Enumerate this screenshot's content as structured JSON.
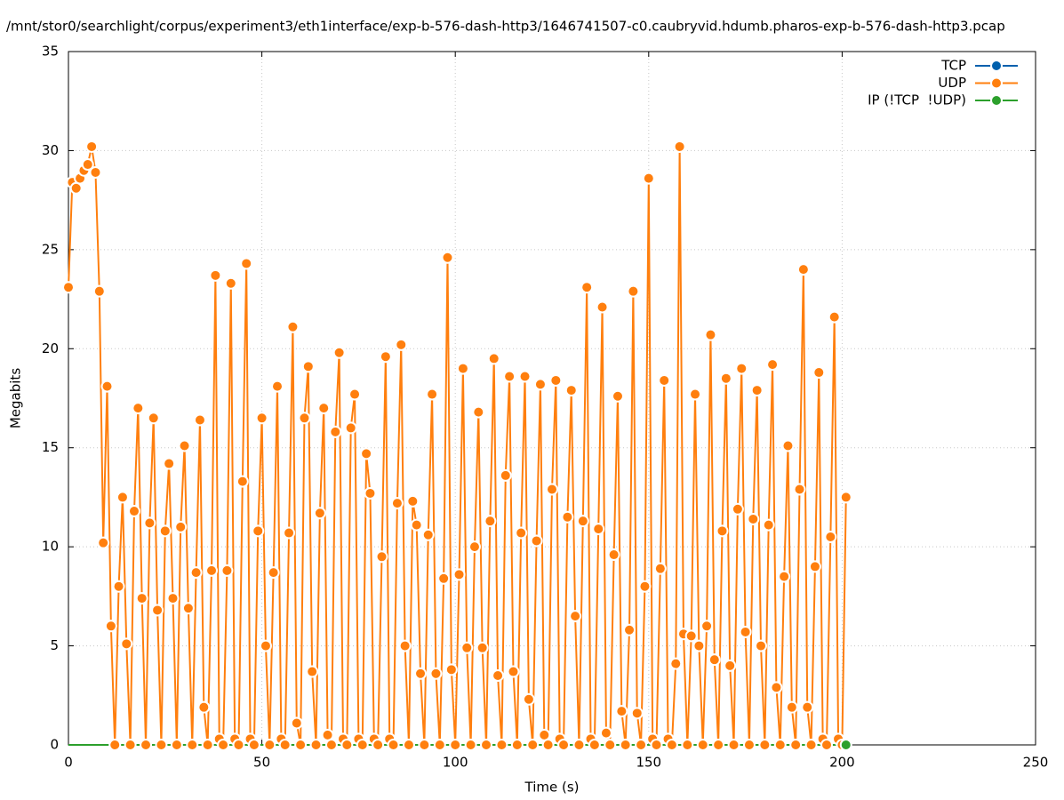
{
  "chart_data": {
    "type": "line",
    "title": "/mnt/stor0/searchlight/corpus/experiment3/eth1interface/exp-b-576-dash-http3/1646741507-c0.caubryvid.hdumb.pharos-exp-b-576-dash-http3.pcap",
    "xlabel": "Time (s)",
    "ylabel": "Megabits",
    "xlim": [
      0,
      250
    ],
    "xticks": [
      0,
      50,
      100,
      150,
      200,
      250
    ],
    "ylim": [
      0,
      35
    ],
    "yticks": [
      0,
      5,
      10,
      15,
      20,
      25,
      30,
      35
    ],
    "grid": true,
    "legend": "top-right",
    "x": [
      0,
      1,
      2,
      3,
      4,
      5,
      6,
      7,
      8,
      9,
      10,
      11,
      12,
      13,
      14,
      15,
      16,
      17,
      18,
      19,
      20,
      21,
      22,
      23,
      24,
      25,
      26,
      27,
      28,
      29,
      30,
      31,
      32,
      33,
      34,
      35,
      36,
      37,
      38,
      39,
      40,
      41,
      42,
      43,
      44,
      45,
      46,
      47,
      48,
      49,
      50,
      51,
      52,
      53,
      54,
      55,
      56,
      57,
      58,
      59,
      60,
      61,
      62,
      63,
      64,
      65,
      66,
      67,
      68,
      69,
      70,
      71,
      72,
      73,
      74,
      75,
      76,
      77,
      78,
      79,
      80,
      81,
      82,
      83,
      84,
      85,
      86,
      87,
      88,
      89,
      90,
      91,
      92,
      93,
      94,
      95,
      96,
      97,
      98,
      99,
      100,
      101,
      102,
      103,
      104,
      105,
      106,
      107,
      108,
      109,
      110,
      111,
      112,
      113,
      114,
      115,
      116,
      117,
      118,
      119,
      120,
      121,
      122,
      123,
      124,
      125,
      126,
      127,
      128,
      129,
      130,
      131,
      132,
      133,
      134,
      135,
      136,
      137,
      138,
      139,
      140,
      141,
      142,
      143,
      144,
      145,
      146,
      147,
      148,
      149,
      150,
      151,
      152,
      153,
      154,
      155,
      156,
      157,
      158,
      159,
      160,
      161,
      162,
      163,
      164,
      165,
      166,
      167,
      168,
      169,
      170,
      171,
      172,
      173,
      174,
      175,
      176,
      177,
      178,
      179,
      180,
      181,
      182,
      183,
      184,
      185,
      186,
      187,
      188,
      189,
      190,
      191,
      192,
      193,
      194,
      195,
      196,
      197,
      198,
      199,
      200,
      201
    ],
    "series": [
      {
        "name": "TCP",
        "color": "#0060ad",
        "values": [
          0,
          0,
          0,
          0,
          0,
          0,
          0,
          0,
          0,
          0,
          0,
          0,
          0,
          0,
          0,
          0,
          0,
          0,
          0,
          0,
          0,
          0,
          0,
          0,
          0,
          0,
          0,
          0,
          0,
          0,
          0,
          0,
          0,
          0,
          0,
          0,
          0,
          0,
          0,
          0,
          0,
          0,
          0,
          0,
          0,
          0,
          0,
          0,
          0,
          0,
          0,
          0,
          0,
          0,
          0,
          0,
          0,
          0,
          0,
          0,
          0,
          0,
          0,
          0,
          0,
          0,
          0,
          0,
          0,
          0,
          0,
          0,
          0,
          0,
          0,
          0,
          0,
          0,
          0,
          0,
          0,
          0,
          0,
          0,
          0,
          0,
          0,
          0,
          0,
          0,
          0,
          0,
          0,
          0,
          0,
          0,
          0,
          0,
          0,
          0,
          0,
          0,
          0,
          0,
          0,
          0,
          0,
          0,
          0,
          0,
          0,
          0,
          0,
          0,
          0,
          0,
          0,
          0,
          0,
          0,
          0,
          0,
          0,
          0,
          0,
          0,
          0,
          0,
          0,
          0,
          0,
          0,
          0,
          0,
          0,
          0,
          0,
          0,
          0,
          0,
          0,
          0,
          0,
          0,
          0,
          0,
          0,
          0,
          0,
          0,
          0,
          0,
          0,
          0,
          0,
          0,
          0,
          0,
          0,
          0,
          0,
          0,
          0,
          0,
          0,
          0,
          0,
          0,
          0,
          0,
          0,
          0,
          0,
          0,
          0,
          0,
          0,
          0,
          0,
          0,
          0,
          0,
          0,
          0,
          0,
          0,
          0,
          0,
          0,
          0,
          0,
          0,
          0,
          0,
          0,
          0,
          0,
          0,
          0,
          0,
          0,
          0
        ]
      },
      {
        "name": "UDP",
        "color": "#ff7f0e",
        "values": [
          23.1,
          28.4,
          28.1,
          28.6,
          29.0,
          29.3,
          30.2,
          28.9,
          22.9,
          10.2,
          18.1,
          6.0,
          0,
          8.0,
          12.5,
          5.1,
          0,
          11.8,
          17.0,
          7.4,
          0,
          11.2,
          16.5,
          6.8,
          0,
          10.8,
          14.2,
          7.4,
          0,
          11.0,
          15.1,
          6.9,
          0,
          8.7,
          16.4,
          1.9,
          0,
          8.8,
          23.7,
          0.3,
          0,
          8.8,
          23.3,
          0.3,
          0,
          13.3,
          24.3,
          0.3,
          0,
          10.8,
          16.5,
          5.0,
          0,
          8.7,
          18.1,
          0.3,
          0,
          10.7,
          21.1,
          1.1,
          0,
          16.5,
          19.1,
          3.7,
          0,
          11.7,
          17.0,
          0.5,
          0,
          15.8,
          19.8,
          0.3,
          0,
          16.0,
          17.7,
          0.3,
          0,
          14.7,
          12.7,
          0.3,
          0,
          9.5,
          19.6,
          0.3,
          0,
          12.2,
          20.2,
          5.0,
          0,
          12.3,
          11.1,
          3.6,
          0,
          10.6,
          17.7,
          3.6,
          0,
          8.4,
          24.6,
          3.8,
          0,
          8.6,
          19.0,
          4.9,
          0,
          10.0,
          16.8,
          4.9,
          0,
          11.3,
          19.5,
          3.5,
          0,
          13.6,
          18.6,
          3.7,
          0,
          10.7,
          18.6,
          2.3,
          0,
          10.3,
          18.2,
          0.5,
          0,
          12.9,
          18.4,
          0.3,
          0,
          11.5,
          17.9,
          6.5,
          0,
          11.3,
          23.1,
          0.3,
          0,
          10.9,
          22.1,
          0.6,
          0,
          9.6,
          17.6,
          1.7,
          0,
          5.8,
          22.9,
          1.6,
          0,
          8.0,
          28.6,
          0.3,
          0,
          8.9,
          18.4,
          0.3,
          0,
          4.1,
          30.2,
          5.6,
          0,
          5.5,
          17.7,
          5.0,
          0,
          6.0,
          20.7,
          4.3,
          0,
          10.8,
          18.5,
          4.0,
          0,
          11.9,
          19.0,
          5.7,
          0,
          11.4,
          17.9,
          5.0,
          0,
          11.1,
          19.2,
          2.9,
          0,
          8.5,
          15.1,
          1.9,
          0,
          12.9,
          24.0,
          1.9,
          0,
          9.0,
          18.8,
          0.3,
          0,
          10.5,
          21.6,
          0.3,
          0,
          12.5
        ]
      },
      {
        "name": "IP (!TCP  !UDP)",
        "color": "#2ca02c",
        "values": [
          0,
          0,
          0,
          0,
          0,
          0,
          0,
          0,
          0,
          0,
          0,
          0,
          0,
          0,
          0,
          0,
          0,
          0,
          0,
          0,
          0,
          0,
          0,
          0,
          0,
          0,
          0,
          0,
          0,
          0,
          0,
          0,
          0,
          0,
          0,
          0,
          0,
          0,
          0,
          0,
          0,
          0,
          0,
          0,
          0,
          0,
          0,
          0,
          0,
          0,
          0,
          0,
          0,
          0,
          0,
          0,
          0,
          0,
          0,
          0,
          0,
          0,
          0,
          0,
          0,
          0,
          0,
          0,
          0,
          0,
          0,
          0,
          0,
          0,
          0,
          0,
          0,
          0,
          0,
          0,
          0,
          0,
          0,
          0,
          0,
          0,
          0,
          0,
          0,
          0,
          0,
          0,
          0,
          0,
          0,
          0,
          0,
          0,
          0,
          0,
          0,
          0,
          0,
          0,
          0,
          0,
          0,
          0,
          0,
          0,
          0,
          0,
          0,
          0,
          0,
          0,
          0,
          0,
          0,
          0,
          0,
          0,
          0,
          0,
          0,
          0,
          0,
          0,
          0,
          0,
          0,
          0,
          0,
          0,
          0,
          0,
          0,
          0,
          0,
          0,
          0,
          0,
          0,
          0,
          0,
          0,
          0,
          0,
          0,
          0,
          0,
          0,
          0,
          0,
          0,
          0,
          0,
          0,
          0,
          0,
          0,
          0,
          0,
          0,
          0,
          0,
          0,
          0,
          0,
          0,
          0,
          0,
          0,
          0,
          0,
          0,
          0,
          0,
          0,
          0,
          0,
          0,
          0,
          0,
          0,
          0,
          0,
          0,
          0,
          0,
          0,
          0,
          0,
          0,
          0,
          0,
          0,
          0,
          0,
          0,
          0,
          0
        ]
      }
    ]
  }
}
